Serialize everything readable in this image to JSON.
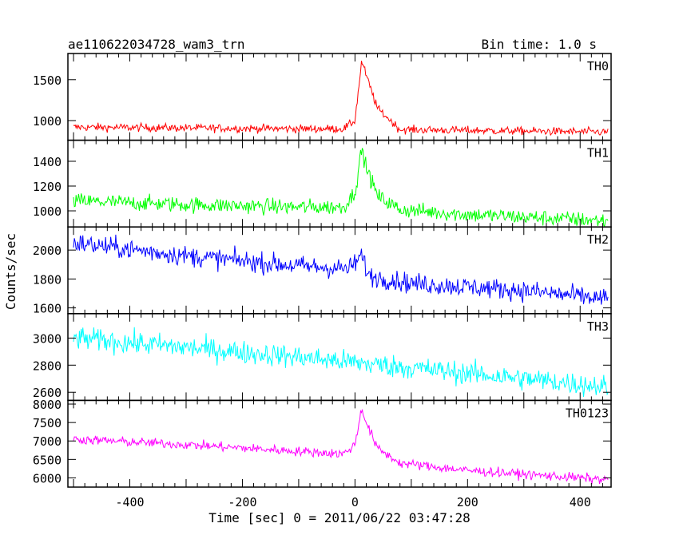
{
  "chart_data": {
    "type": "line",
    "title": "ae110622034728_wam3_trn",
    "subtitle": "Bin time: 1.0 s",
    "xlabel": "Time [sec] 0 = 2011/06/22 03:47:28",
    "ylabel": "Counts/sec",
    "xlim": [
      -510,
      455
    ],
    "xticks": [
      -400,
      -200,
      0,
      200,
      400
    ],
    "x_range": [
      -500,
      450
    ],
    "peak_time": 12,
    "series": [
      {
        "name": "TH0",
        "color": "#ff0000",
        "ylim": [
          760,
          1820
        ],
        "yticks": [
          1000,
          1500
        ],
        "points": [
          [
            -500,
            920
          ],
          [
            -300,
            910
          ],
          [
            -100,
            900
          ],
          [
            -20,
            900
          ],
          [
            0,
            1000
          ],
          [
            12,
            1730
          ],
          [
            20,
            1550
          ],
          [
            40,
            1150
          ],
          [
            80,
            890
          ],
          [
            200,
            880
          ],
          [
            450,
            860
          ]
        ],
        "noise": 35
      },
      {
        "name": "TH1",
        "color": "#00ff00",
        "ylim": [
          870,
          1570
        ],
        "yticks": [
          1000,
          1200,
          1400
        ],
        "points": [
          [
            -500,
            1080
          ],
          [
            -300,
            1050
          ],
          [
            -100,
            1030
          ],
          [
            -20,
            1030
          ],
          [
            0,
            1150
          ],
          [
            12,
            1500
          ],
          [
            20,
            1350
          ],
          [
            40,
            1120
          ],
          [
            80,
            1010
          ],
          [
            200,
            970
          ],
          [
            450,
            920
          ]
        ],
        "noise": 45
      },
      {
        "name": "TH2",
        "color": "#0000ff",
        "ylim": [
          1560,
          2160
        ],
        "yticks": [
          1600,
          1800,
          2000
        ],
        "points": [
          [
            -500,
            2050
          ],
          [
            -300,
            1960
          ],
          [
            -100,
            1890
          ],
          [
            -10,
            1870
          ],
          [
            12,
            1960
          ],
          [
            25,
            1820
          ],
          [
            100,
            1770
          ],
          [
            300,
            1720
          ],
          [
            450,
            1660
          ]
        ],
        "noise": 50
      },
      {
        "name": "TH3",
        "color": "#00ffff",
        "ylim": [
          2540,
          3180
        ],
        "yticks": [
          2600,
          2800,
          3000
        ],
        "points": [
          [
            -500,
            3000
          ],
          [
            -300,
            2930
          ],
          [
            -100,
            2860
          ],
          [
            100,
            2780
          ],
          [
            300,
            2700
          ],
          [
            450,
            2640
          ]
        ],
        "noise": 60
      },
      {
        "name": "TH0123",
        "color": "#ff00ff",
        "ylim": [
          5750,
          8100
        ],
        "yticks": [
          6000,
          6500,
          7000,
          7500,
          8000
        ],
        "points": [
          [
            -500,
            7050
          ],
          [
            -300,
            6900
          ],
          [
            -100,
            6720
          ],
          [
            -20,
            6650
          ],
          [
            0,
            6900
          ],
          [
            12,
            7900
          ],
          [
            20,
            7500
          ],
          [
            40,
            6800
          ],
          [
            80,
            6400
          ],
          [
            200,
            6200
          ],
          [
            450,
            5950
          ]
        ],
        "noise": 90
      }
    ]
  }
}
